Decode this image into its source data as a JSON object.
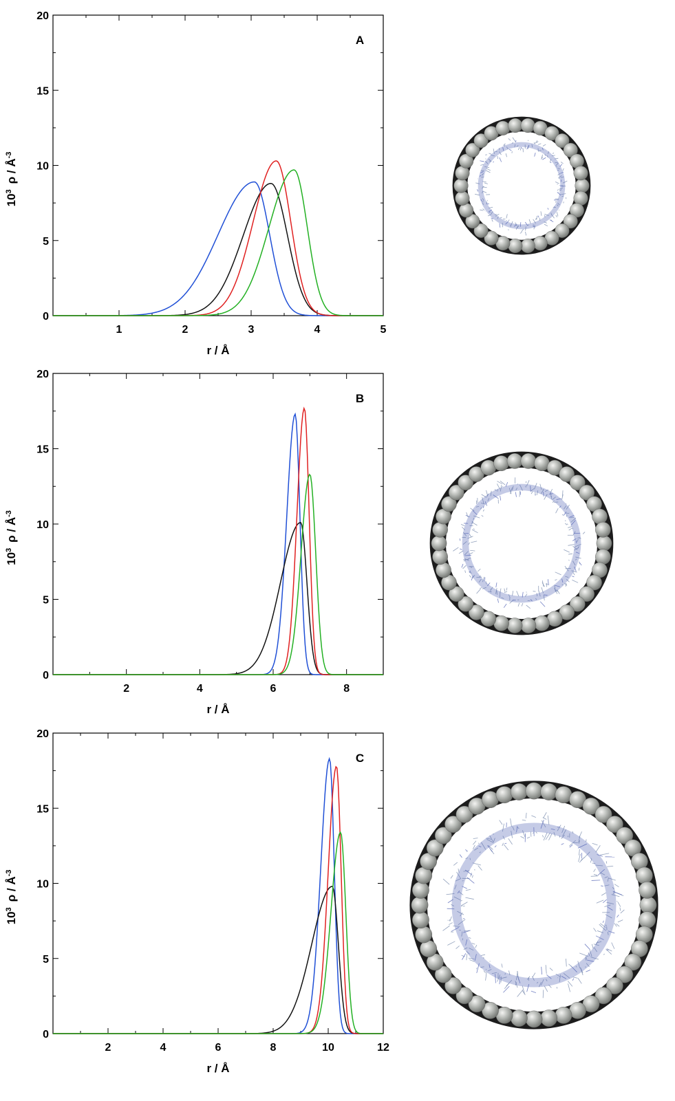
{
  "chart_data": [
    {
      "type": "line",
      "panel_label": "A",
      "xlabel": "r / Å",
      "ylabel_base": "10",
      "ylabel_sup1": "3",
      "ylabel_mid": "ρ / Å",
      "ylabel_sup2": "-3",
      "xlim": [
        0,
        5
      ],
      "ylim": [
        0,
        20
      ],
      "xticks": [
        1,
        2,
        3,
        4,
        5
      ],
      "yticks": [
        0,
        5,
        10,
        15,
        20
      ],
      "grid": false,
      "series": [
        {
          "color": "#1f4fd6",
          "peak_x": 3.05,
          "peak_y": 8.9,
          "sigma_l": 0.55,
          "sigma_r": 0.23
        },
        {
          "color": "#111111",
          "peak_x": 3.3,
          "peak_y": 8.8,
          "sigma_l": 0.42,
          "sigma_r": 0.25
        },
        {
          "color": "#e02020",
          "peak_x": 3.38,
          "peak_y": 10.3,
          "sigma_l": 0.35,
          "sigma_r": 0.22
        },
        {
          "color": "#22b022",
          "peak_x": 3.65,
          "peak_y": 9.7,
          "sigma_l": 0.38,
          "sigma_r": 0.2
        }
      ]
    },
    {
      "type": "line",
      "panel_label": "B",
      "xlabel": "r / Å",
      "ylabel_base": "10",
      "ylabel_sup1": "3",
      "ylabel_mid": "ρ / Å",
      "ylabel_sup2": "-3",
      "xlim": [
        0,
        9
      ],
      "ylim": [
        0,
        20
      ],
      "xticks": [
        2,
        4,
        6,
        8
      ],
      "yticks": [
        0,
        5,
        10,
        15,
        20
      ],
      "grid": false,
      "series": [
        {
          "color": "#1f4fd6",
          "peak_x": 6.6,
          "peak_y": 17.3,
          "sigma_l": 0.23,
          "sigma_r": 0.13
        },
        {
          "color": "#111111",
          "peak_x": 6.75,
          "peak_y": 10.1,
          "sigma_l": 0.55,
          "sigma_r": 0.17
        },
        {
          "color": "#e02020",
          "peak_x": 6.85,
          "peak_y": 17.7,
          "sigma_l": 0.2,
          "sigma_r": 0.13
        },
        {
          "color": "#22b022",
          "peak_x": 7.0,
          "peak_y": 13.3,
          "sigma_l": 0.24,
          "sigma_r": 0.16
        }
      ]
    },
    {
      "type": "line",
      "panel_label": "C",
      "xlabel": "r / Å",
      "ylabel_base": "10",
      "ylabel_sup1": "3",
      "ylabel_mid": "ρ / Å",
      "ylabel_sup2": "-3",
      "xlim": [
        0,
        12
      ],
      "ylim": [
        0,
        20
      ],
      "xticks": [
        2,
        4,
        6,
        8,
        10,
        12
      ],
      "yticks": [
        0,
        5,
        10,
        15,
        20
      ],
      "grid": false,
      "series": [
        {
          "color": "#1f4fd6",
          "peak_x": 10.05,
          "peak_y": 18.3,
          "sigma_l": 0.32,
          "sigma_r": 0.17
        },
        {
          "color": "#111111",
          "peak_x": 10.15,
          "peak_y": 9.8,
          "sigma_l": 0.75,
          "sigma_r": 0.22
        },
        {
          "color": "#e02020",
          "peak_x": 10.3,
          "peak_y": 17.8,
          "sigma_l": 0.3,
          "sigma_r": 0.17
        },
        {
          "color": "#22b022",
          "peak_x": 10.45,
          "peak_y": 13.4,
          "sigma_l": 0.35,
          "sigma_r": 0.19
        }
      ]
    }
  ],
  "illustrations": [
    {
      "name": "nanotube-cross-section-a",
      "outer_beads": 30
    },
    {
      "name": "nanotube-cross-section-b",
      "outer_beads": 38
    },
    {
      "name": "nanotube-cross-section-c",
      "outer_beads": 48
    }
  ],
  "colors": {
    "bead_fill": "#a9aca8",
    "bead_highlight": "#f2f2f0",
    "ring_shadow": "#1c1c1c",
    "wire": "#7d8fb0",
    "wire_accent": "#5a6ab8"
  }
}
